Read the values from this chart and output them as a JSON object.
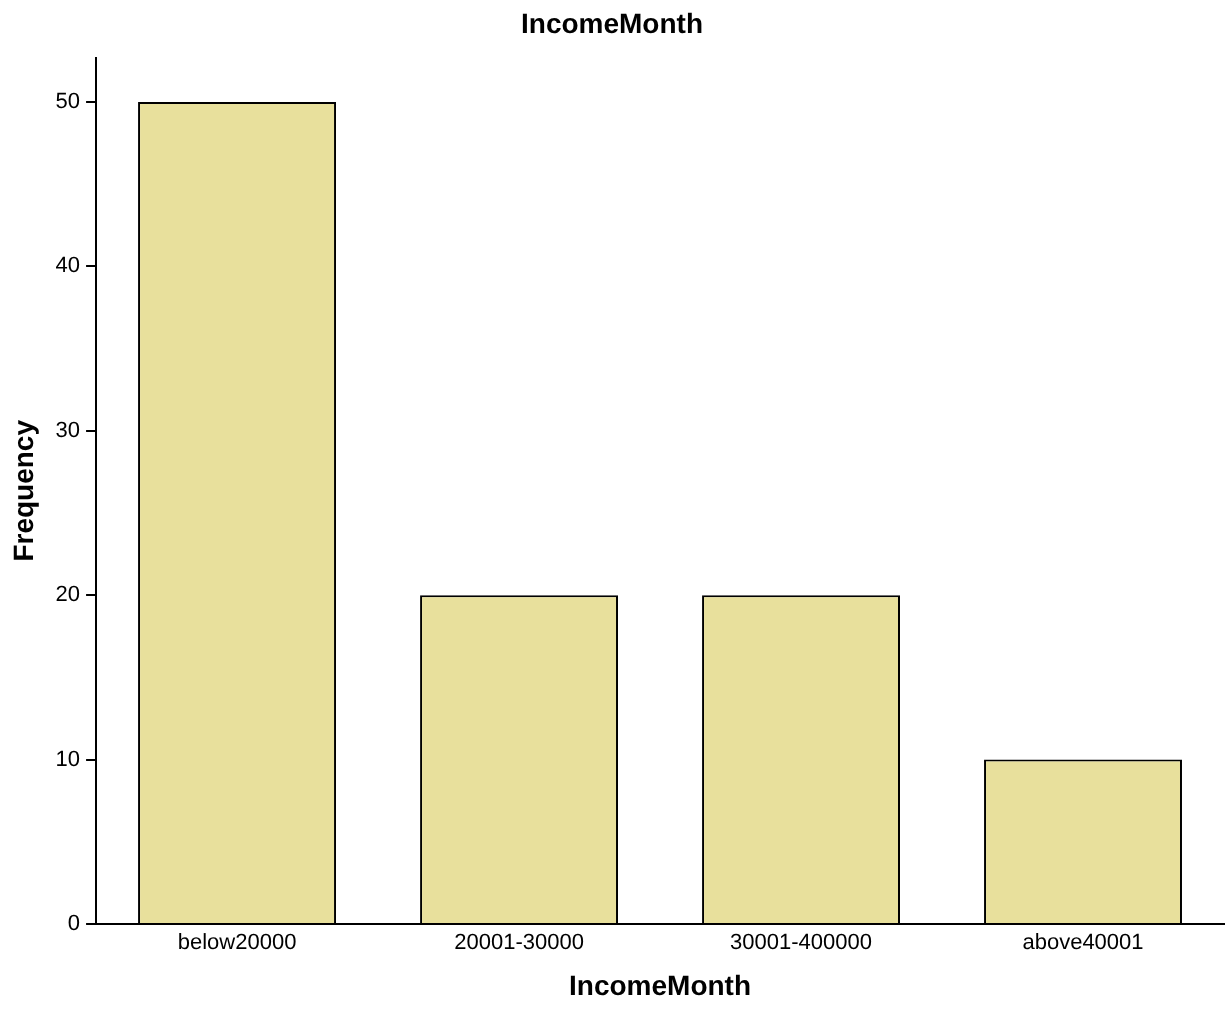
{
  "chart_data": {
    "type": "bar",
    "title": "IncomeMonth",
    "xlabel": "IncomeMonth",
    "ylabel": "Frequency",
    "categories": [
      "below20000",
      "20001-30000",
      "30001-400000",
      "above40001"
    ],
    "values": [
      50,
      20,
      20,
      10
    ],
    "color": "#e8e09c",
    "ylim": [
      0,
      52.7
    ],
    "yticks": [
      0,
      10,
      20,
      30,
      40,
      50
    ],
    "grid": false,
    "legend": false
  }
}
